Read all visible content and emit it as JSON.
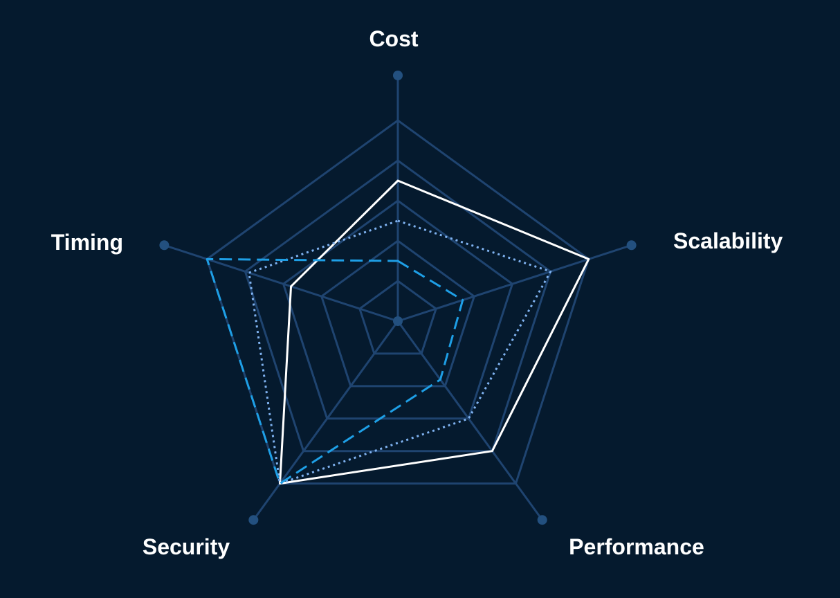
{
  "colors": {
    "background": "#051a2e",
    "grid": "#1f4470",
    "axis_dot": "#23507f",
    "label": "#ffffff"
  },
  "chart_data": {
    "type": "radar",
    "title": "",
    "axes": [
      "Cost",
      "Scalability",
      "Performance",
      "Security",
      "Timing"
    ],
    "scale": {
      "min": 0,
      "max": 5,
      "rings": 5
    },
    "legend": "none",
    "series": [
      {
        "style": "solid",
        "color": "#ffffff",
        "values": [
          3.5,
          5.0,
          4.0,
          5.0,
          2.8
        ]
      },
      {
        "style": "dotted",
        "color": "#7fb2f0",
        "values": [
          2.5,
          4.0,
          3.0,
          5.0,
          3.9
        ]
      },
      {
        "style": "dashed",
        "color": "#1e9fe6",
        "values": [
          1.5,
          1.7,
          1.8,
          5.0,
          5.0
        ]
      }
    ]
  }
}
